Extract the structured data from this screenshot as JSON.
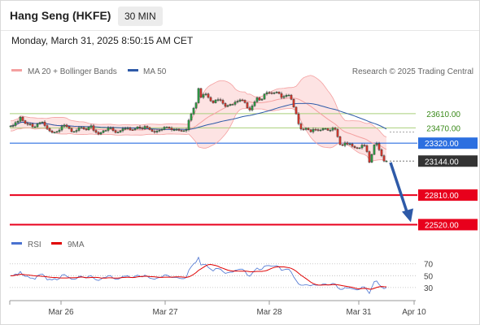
{
  "header": {
    "title": "Hang Seng (HKFE)",
    "timeframe": "30 MIN"
  },
  "datetime": "Monday, March 31, 2025 8:50:15 AM CET",
  "credit": "Research © 2025 Trading Central",
  "colors": {
    "bollinger": "#f4a0a0",
    "bollinger_fill": "#fde3e3",
    "ma50": "#2e5aa8",
    "rsi": "#4a72d0",
    "rsi_ma": "#e00000",
    "bull": "#2d9e44",
    "bear": "#d9362b",
    "resistance": "#a9cf7a",
    "pivot": "#2c6fe0",
    "support": "#e8001c",
    "arrow": "#2e5aa8"
  },
  "chart_data": [
    {
      "type": "candlestick",
      "legend": [
        {
          "name": "MA 20 + Bollinger Bands",
          "color": "#f4a0a0"
        },
        {
          "name": "MA 50",
          "color": "#2e5aa8"
        }
      ],
      "x_ticks": [
        "Mar 26",
        "Mar 27",
        "Mar 28",
        "Mar 31",
        "Apr 10"
      ],
      "ylim": [
        22420,
        23920
      ],
      "levels": [
        {
          "value": 23610.0,
          "label": "23610.00",
          "kind": "resistance"
        },
        {
          "value": 23470.0,
          "label": "23470.00",
          "kind": "resistance"
        },
        {
          "value": 23320.0,
          "label": "23320.00",
          "kind": "pivot"
        },
        {
          "value": 23144.0,
          "label": "23144.00",
          "kind": "last"
        },
        {
          "value": 22810.0,
          "label": "22810.00",
          "kind": "support"
        },
        {
          "value": 22520.0,
          "label": "22520.00",
          "kind": "support"
        }
      ],
      "forecast_arrow": {
        "from": 23130,
        "to": 22560
      },
      "closes": [
        23489,
        23493,
        23522,
        23535,
        23576,
        23541,
        23513,
        23505,
        23508,
        23481,
        23481,
        23509,
        23522,
        23528,
        23493,
        23463,
        23440,
        23425,
        23426,
        23434,
        23449,
        23485,
        23498,
        23483,
        23464,
        23433,
        23434,
        23445,
        23473,
        23474,
        23459,
        23450,
        23478,
        23491,
        23445,
        23426,
        23409,
        23424,
        23442,
        23445,
        23470,
        23470,
        23443,
        23425,
        23428,
        23442,
        23462,
        23465,
        23469,
        23452,
        23450,
        23461,
        23480,
        23469,
        23462,
        23485,
        23473,
        23453,
        23436,
        23429,
        23440,
        23447,
        23455,
        23477,
        23478,
        23467,
        23451,
        23452,
        23455,
        23445,
        23439,
        23442,
        23451,
        23545,
        23606,
        23664,
        23716,
        23857,
        23769,
        23797,
        23803,
        23769,
        23735,
        23716,
        23744,
        23748,
        23741,
        23710,
        23681,
        23690,
        23701,
        23701,
        23723,
        23732,
        23745,
        23740,
        23718,
        23666,
        23646,
        23687,
        23726,
        23766,
        23743,
        23752,
        23803,
        23817,
        23815,
        23809,
        23814,
        23822,
        23807,
        23768,
        23778,
        23791,
        23792,
        23751,
        23674,
        23607,
        23510,
        23458,
        23454,
        23466,
        23452,
        23431,
        23456,
        23453,
        23446,
        23449,
        23463,
        23463,
        23446,
        23448,
        23467,
        23456,
        23383,
        23306,
        23297,
        23322,
        23312,
        23313,
        23289,
        23276,
        23268,
        23274,
        23301,
        23296,
        23237,
        23132,
        23209,
        23303,
        23317,
        23256,
        23196,
        23144,
        23144
      ]
    },
    {
      "type": "line",
      "legend": [
        {
          "name": "RSI",
          "color": "#4a72d0"
        },
        {
          "name": "9MA",
          "color": "#e00000"
        }
      ],
      "y_ticks": [
        70,
        50,
        30
      ],
      "ylim": [
        12,
        82
      ],
      "rsi": [
        50,
        50,
        53,
        52,
        57,
        51,
        49,
        49,
        46,
        46,
        44,
        50,
        52,
        53,
        49,
        43,
        44,
        43,
        45,
        43,
        45,
        51,
        52,
        49,
        47,
        44,
        44,
        45,
        49,
        49,
        47,
        46,
        49,
        50,
        46,
        43,
        42,
        44,
        47,
        47,
        50,
        50,
        46,
        44,
        44,
        46,
        49,
        49,
        50,
        47,
        47,
        49,
        51,
        49,
        48,
        51,
        49,
        46,
        45,
        44,
        46,
        47,
        48,
        51,
        51,
        49,
        47,
        47,
        47,
        46,
        45,
        45,
        47,
        59,
        65,
        70,
        73,
        81,
        68,
        69,
        69,
        64,
        61,
        58,
        62,
        62,
        61,
        57,
        54,
        55,
        56,
        56,
        59,
        60,
        61,
        61,
        58,
        51,
        49,
        54,
        59,
        63,
        60,
        61,
        66,
        67,
        67,
        66,
        66,
        67,
        65,
        59,
        60,
        61,
        61,
        56,
        48,
        42,
        36,
        34,
        34,
        35,
        34,
        33,
        35,
        34,
        34,
        34,
        36,
        36,
        34,
        35,
        37,
        36,
        30,
        27,
        27,
        30,
        29,
        29,
        28,
        27,
        26,
        27,
        31,
        31,
        26,
        20,
        30,
        40,
        41,
        35,
        31,
        28,
        30
      ]
    }
  ]
}
